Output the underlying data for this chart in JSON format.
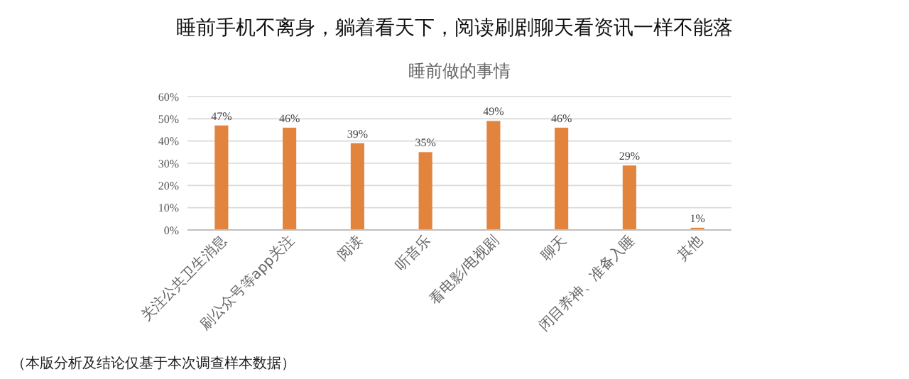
{
  "chart_data": {
    "type": "bar",
    "title": "睡前手机不离身，躺着看天下，阅读刷剧聊天看资讯一样不能落",
    "subtitle": "睡前做的事情",
    "categories": [
      "关注公共卫生消息",
      "刷公众号等app关注",
      "阅读",
      "听音乐",
      "看电影/电视剧",
      "聊天",
      "闭目养神、准备入睡",
      "其他"
    ],
    "values": [
      47,
      46,
      39,
      35,
      49,
      46,
      29,
      1
    ],
    "color": "#e2843e",
    "ylim": [
      0,
      60
    ],
    "yticks": [
      {
        "value": 0,
        "label": "0%"
      },
      {
        "value": 10,
        "label": "10%"
      },
      {
        "value": 20,
        "label": "20%"
      },
      {
        "value": 30,
        "label": "30%"
      },
      {
        "value": 40,
        "label": "40%"
      },
      {
        "value": 50,
        "label": "50%"
      },
      {
        "value": 60,
        "label": "60%"
      }
    ],
    "value_labels": [
      "47%",
      "46%",
      "39%",
      "35%",
      "49%",
      "46%",
      "29%",
      "1%"
    ],
    "grid": "y",
    "annotations": [
      "（本版分析及结论仅基于本次调查样本数据）"
    ]
  }
}
